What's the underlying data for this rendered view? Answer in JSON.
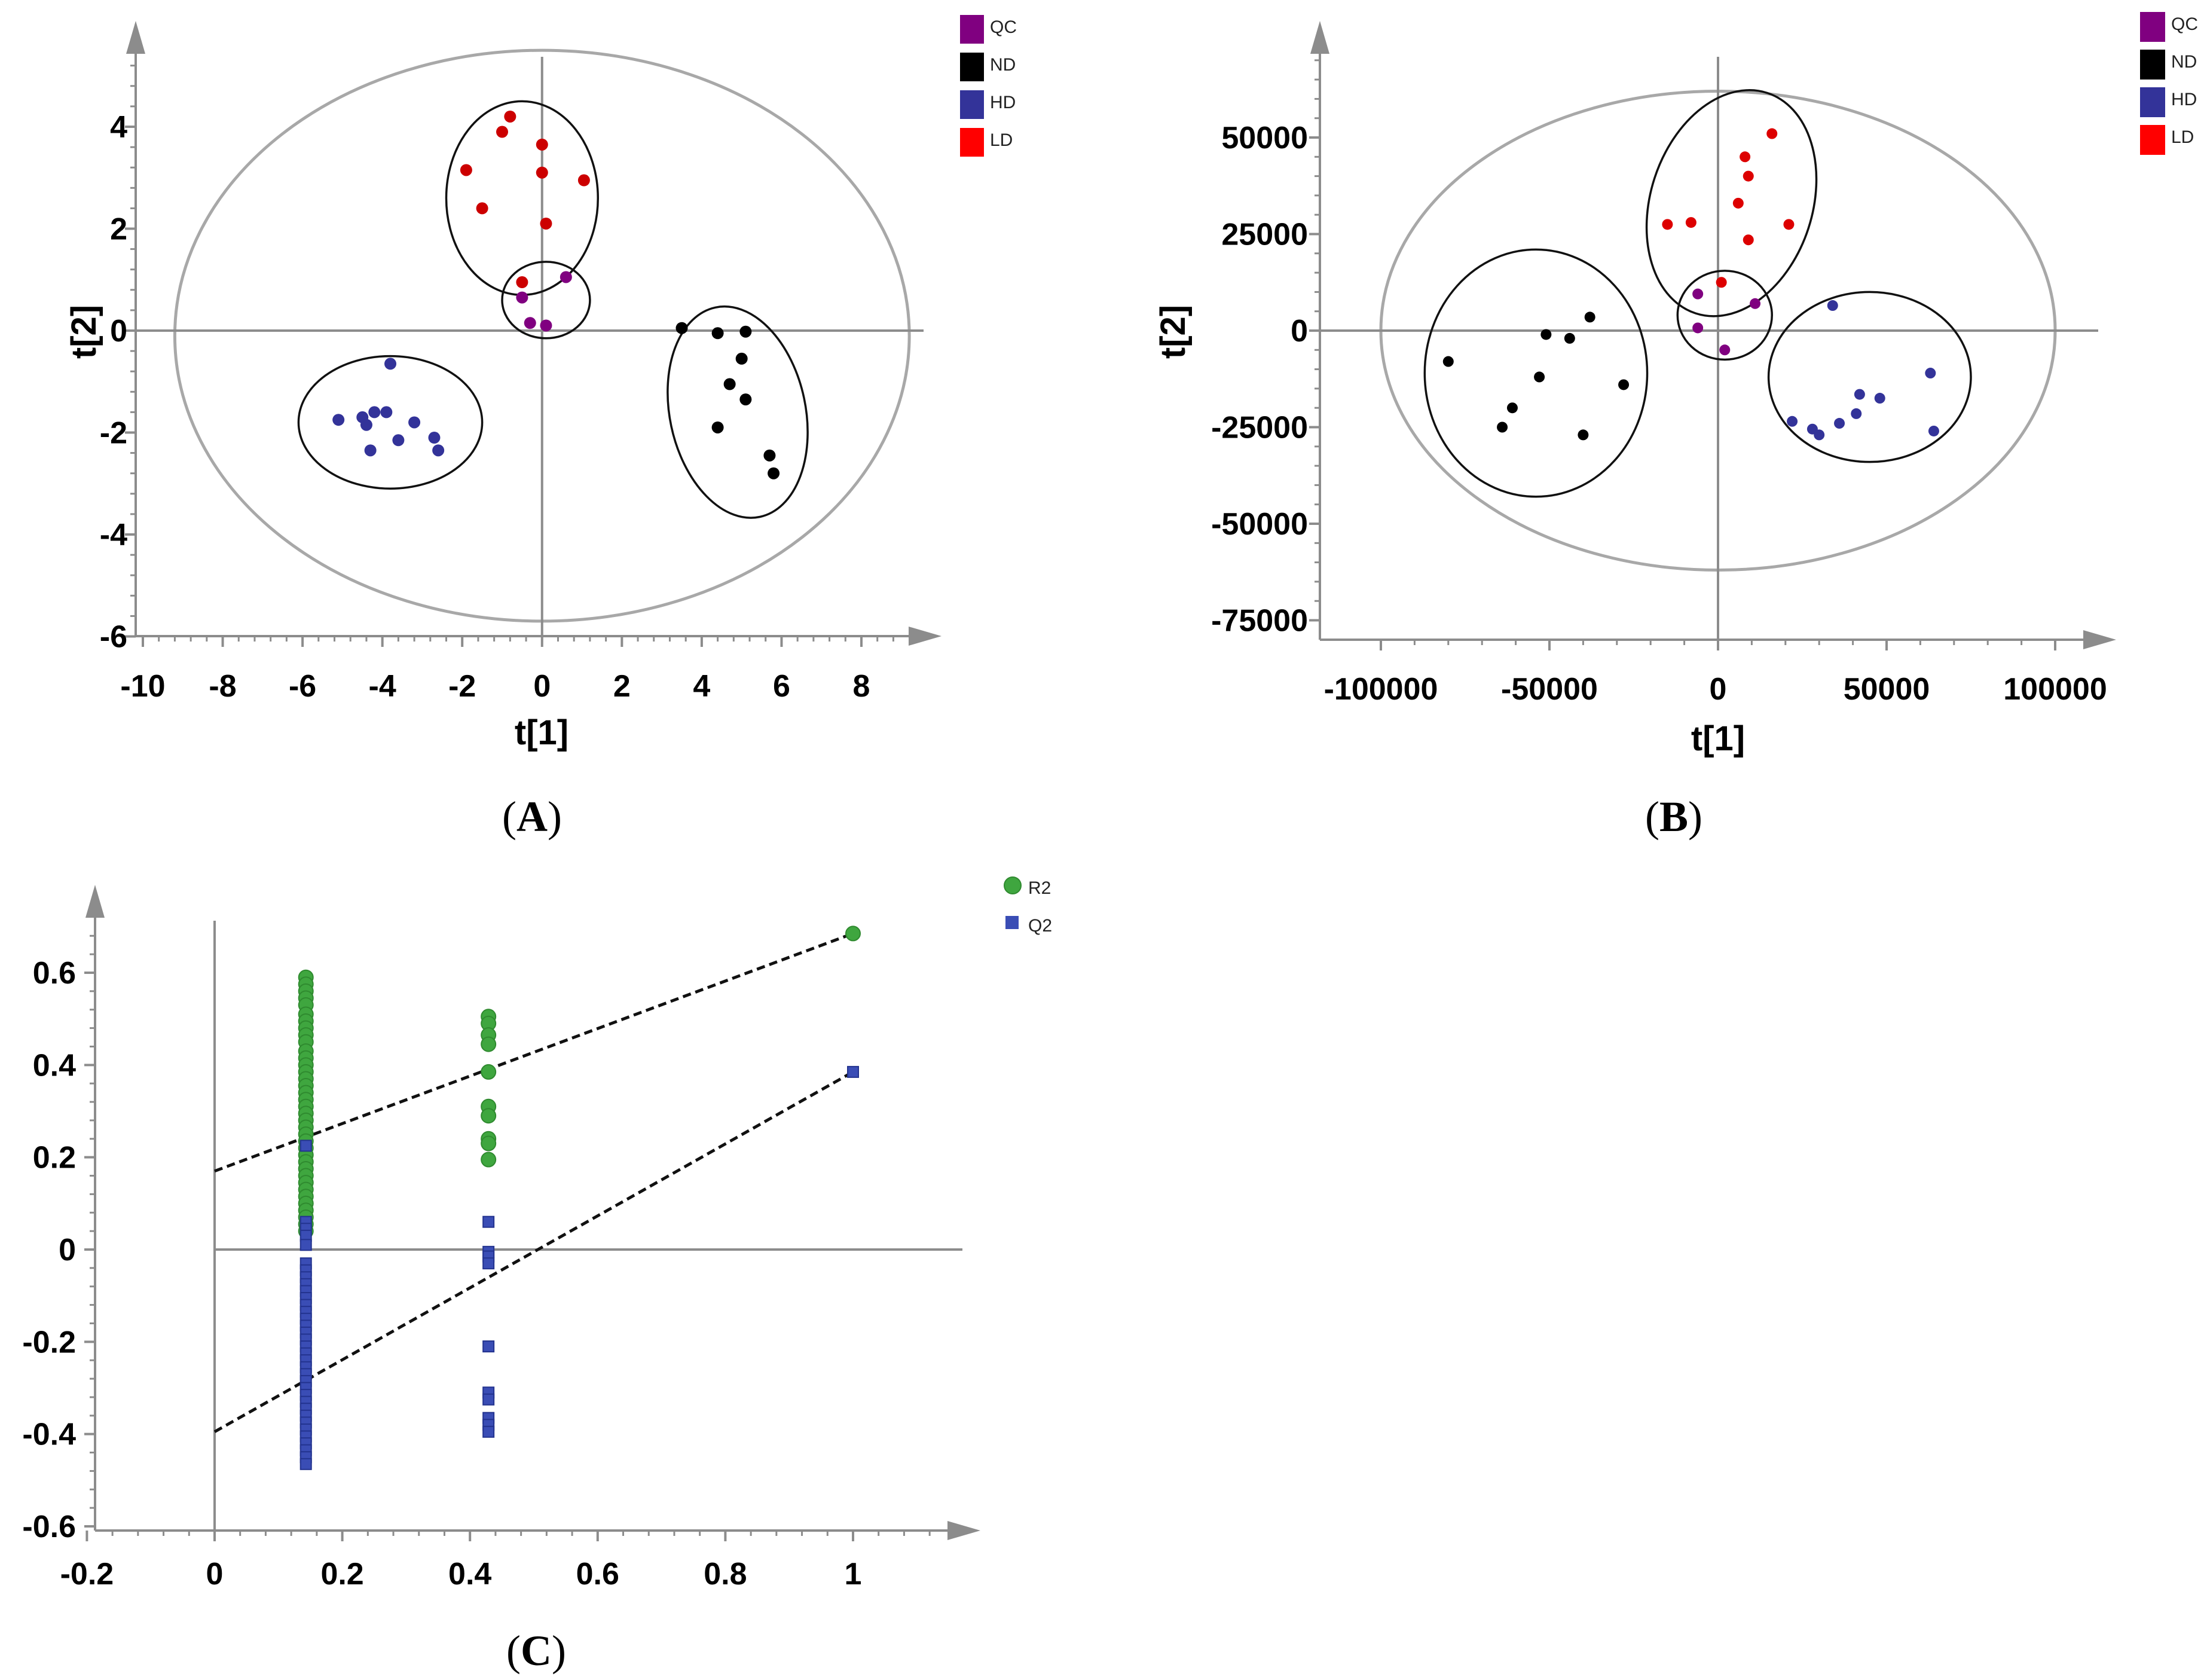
{
  "chart_data": [
    {
      "id": "A",
      "type": "scatter",
      "caption": "A",
      "xlabel": "t[1]",
      "ylabel": "t[2]",
      "xlim": [
        -10,
        9.5
      ],
      "ylim": [
        -6,
        5.2
      ],
      "xticks": [
        -10,
        -8,
        -6,
        -4,
        -2,
        0,
        2,
        4,
        6,
        8
      ],
      "yticks": [
        -6,
        -4,
        -2,
        0,
        2,
        4
      ],
      "legend": [
        {
          "name": "QC",
          "color": "#800080",
          "marker": "square"
        },
        {
          "name": "ND",
          "color": "#000000",
          "marker": "square"
        },
        {
          "name": "HD",
          "color": "#333399",
          "marker": "square"
        },
        {
          "name": "LD",
          "color": "#ff0000",
          "marker": "square"
        }
      ],
      "hotelling_ellipse": {
        "cx": 0,
        "cy": -0.1,
        "rx": 9.2,
        "ry": 5.6
      },
      "group_ellipses": [
        {
          "group": "LD",
          "cx": -0.5,
          "cy": 2.6,
          "rx": 1.9,
          "ry": 1.9
        },
        {
          "group": "QC",
          "cx": 0.1,
          "cy": 0.6,
          "rx": 1.1,
          "ry": 0.75
        },
        {
          "group": "HD",
          "cx": -3.8,
          "cy": -1.8,
          "rx": 2.3,
          "ry": 1.3
        },
        {
          "group": "ND",
          "cx": 4.9,
          "cy": -1.6,
          "rx": 1.7,
          "ry": 2.1,
          "rotate": -12
        }
      ],
      "series": [
        {
          "name": "LD",
          "color": "#cc0000",
          "points": [
            [
              -0.8,
              4.2
            ],
            [
              -1.0,
              3.9
            ],
            [
              0,
              3.65
            ],
            [
              -1.9,
              3.15
            ],
            [
              0,
              3.1
            ],
            [
              1.05,
              2.95
            ],
            [
              -1.5,
              2.4
            ],
            [
              0.1,
              2.1
            ],
            [
              -0.5,
              0.95
            ]
          ]
        },
        {
          "name": "QC",
          "color": "#800080",
          "points": [
            [
              0.6,
              1.05
            ],
            [
              -0.5,
              0.65
            ],
            [
              -0.3,
              0.15
            ],
            [
              0.1,
              0.1
            ]
          ]
        },
        {
          "name": "HD",
          "color": "#333399",
          "points": [
            [
              -3.8,
              -0.65
            ],
            [
              -4.2,
              -1.6
            ],
            [
              -3.9,
              -1.6
            ],
            [
              -4.5,
              -1.7
            ],
            [
              -5.1,
              -1.75
            ],
            [
              -4.4,
              -1.85
            ],
            [
              -3.2,
              -1.8
            ],
            [
              -2.7,
              -2.1
            ],
            [
              -3.6,
              -2.15
            ],
            [
              -2.6,
              -2.35
            ],
            [
              -4.3,
              -2.35
            ]
          ]
        },
        {
          "name": "ND",
          "color": "#000000",
          "points": [
            [
              3.5,
              0.05
            ],
            [
              4.4,
              -0.05
            ],
            [
              5.1,
              -0.02
            ],
            [
              5.0,
              -0.55
            ],
            [
              4.7,
              -1.05
            ],
            [
              5.1,
              -1.35
            ],
            [
              4.4,
              -1.9
            ],
            [
              5.7,
              -2.45
            ],
            [
              5.8,
              -2.8
            ]
          ]
        }
      ]
    },
    {
      "id": "B",
      "type": "scatter",
      "caption": "B",
      "xlabel": "t[1]",
      "ylabel": "t[2]",
      "xlim": [
        -120000,
        120000
      ],
      "ylim": [
        -80000,
        72000
      ],
      "xticks": [
        -100000,
        -50000,
        0,
        50000,
        100000
      ],
      "yticks": [
        -75000,
        -50000,
        -25000,
        0,
        25000,
        50000
      ],
      "legend": [
        {
          "name": "QC",
          "color": "#800080",
          "marker": "square"
        },
        {
          "name": "ND",
          "color": "#000000",
          "marker": "square"
        },
        {
          "name": "HD",
          "color": "#333399",
          "marker": "square"
        },
        {
          "name": "LD",
          "color": "#ff0000",
          "marker": "square"
        }
      ],
      "hotelling_ellipse": {
        "cx": 0,
        "cy": 0,
        "rx": 100000,
        "ry": 62000
      },
      "group_ellipses": [
        {
          "group": "LD",
          "cx": 4000,
          "cy": 33000,
          "rx": 24000,
          "ry": 30000,
          "rotate": 18
        },
        {
          "group": "QC",
          "cx": 2000,
          "cy": 4000,
          "rx": 14000,
          "ry": 11500
        },
        {
          "group": "ND",
          "cx": -54000,
          "cy": -11000,
          "rx": 33000,
          "ry": 32000
        },
        {
          "group": "HD",
          "cx": 45000,
          "cy": -12000,
          "rx": 30000,
          "ry": 22000
        }
      ],
      "series": [
        {
          "name": "LD",
          "color": "#dd0000",
          "points": [
            [
              16000,
              51000
            ],
            [
              8000,
              45000
            ],
            [
              9000,
              40000
            ],
            [
              6000,
              33000
            ],
            [
              -8000,
              28000
            ],
            [
              -15000,
              27500
            ],
            [
              21000,
              27500
            ],
            [
              9000,
              23500
            ],
            [
              1000,
              12500
            ]
          ]
        },
        {
          "name": "QC",
          "color": "#800080",
          "points": [
            [
              -6000,
              9500
            ],
            [
              11000,
              7000
            ],
            [
              -6000,
              700
            ],
            [
              2000,
              -5000
            ]
          ]
        },
        {
          "name": "ND",
          "color": "#000000",
          "points": [
            [
              -38000,
              3500
            ],
            [
              -51000,
              -1000
            ],
            [
              -44000,
              -2000
            ],
            [
              -80000,
              -8000
            ],
            [
              -53000,
              -12000
            ],
            [
              -28000,
              -14000
            ],
            [
              -61000,
              -20000
            ],
            [
              -64000,
              -25000
            ],
            [
              -40000,
              -27000
            ]
          ]
        },
        {
          "name": "HD",
          "color": "#333399",
          "points": [
            [
              34000,
              6500
            ],
            [
              63000,
              -11000
            ],
            [
              42000,
              -16500
            ],
            [
              48000,
              -17500
            ],
            [
              41000,
              -21500
            ],
            [
              22000,
              -23500
            ],
            [
              36000,
              -24000
            ],
            [
              28000,
              -25500
            ],
            [
              30000,
              -27000
            ],
            [
              64000,
              -26000
            ]
          ]
        }
      ]
    },
    {
      "id": "C",
      "type": "scatter",
      "caption": "C",
      "xlabel": "",
      "ylabel": "",
      "xlim": [
        -0.22,
        1.2
      ],
      "ylim": [
        -0.6,
        0.77
      ],
      "xticks": [
        -0.2,
        0,
        0.2,
        0.4,
        0.6,
        0.8,
        1
      ],
      "yticks": [
        -0.6,
        -0.4,
        -0.2,
        0,
        0.2,
        0.4,
        0.6
      ],
      "legend": [
        {
          "name": "R2",
          "color": "#3fa63f",
          "marker": "circle"
        },
        {
          "name": "Q2",
          "color": "#3a4db5",
          "marker": "square"
        }
      ],
      "regression_lines": [
        {
          "name": "R2",
          "x": [
            0,
            1
          ],
          "y": [
            0.17,
            0.685
          ]
        },
        {
          "name": "Q2",
          "x": [
            0,
            1
          ],
          "y": [
            -0.395,
            0.385
          ]
        }
      ],
      "series": [
        {
          "name": "R2",
          "color": "#3fa63f",
          "marker": "circle",
          "points": [
            [
              1,
              0.685
            ],
            [
              0.143,
              0.59
            ],
            [
              0.143,
              0.575
            ],
            [
              0.143,
              0.56
            ],
            [
              0.143,
              0.545
            ],
            [
              0.143,
              0.53
            ],
            [
              0.143,
              0.51
            ],
            [
              0.143,
              0.495
            ],
            [
              0.143,
              0.48
            ],
            [
              0.143,
              0.465
            ],
            [
              0.143,
              0.45
            ],
            [
              0.143,
              0.43
            ],
            [
              0.143,
              0.415
            ],
            [
              0.143,
              0.4
            ],
            [
              0.143,
              0.385
            ],
            [
              0.143,
              0.37
            ],
            [
              0.143,
              0.355
            ],
            [
              0.143,
              0.34
            ],
            [
              0.143,
              0.325
            ],
            [
              0.143,
              0.31
            ],
            [
              0.143,
              0.295
            ],
            [
              0.143,
              0.28
            ],
            [
              0.143,
              0.265
            ],
            [
              0.143,
              0.25
            ],
            [
              0.143,
              0.235
            ],
            [
              0.143,
              0.22
            ],
            [
              0.143,
              0.205
            ],
            [
              0.143,
              0.19
            ],
            [
              0.143,
              0.175
            ],
            [
              0.143,
              0.16
            ],
            [
              0.143,
              0.145
            ],
            [
              0.143,
              0.13
            ],
            [
              0.143,
              0.115
            ],
            [
              0.143,
              0.1
            ],
            [
              0.143,
              0.085
            ],
            [
              0.143,
              0.07
            ],
            [
              0.143,
              0.055
            ],
            [
              0.143,
              0.04
            ],
            [
              0.429,
              0.505
            ],
            [
              0.429,
              0.49
            ],
            [
              0.429,
              0.465
            ],
            [
              0.429,
              0.445
            ],
            [
              0.429,
              0.385
            ],
            [
              0.429,
              0.31
            ],
            [
              0.429,
              0.29
            ],
            [
              0.429,
              0.24
            ],
            [
              0.429,
              0.23
            ],
            [
              0.429,
              0.195
            ]
          ]
        },
        {
          "name": "Q2",
          "color": "#3a4db5",
          "marker": "square",
          "points": [
            [
              1,
              0.385
            ],
            [
              0.143,
              0.225
            ],
            [
              0.143,
              0.06
            ],
            [
              0.143,
              0.045
            ],
            [
              0.143,
              0.03
            ],
            [
              0.143,
              0.01
            ],
            [
              0.143,
              -0.03
            ],
            [
              0.143,
              -0.045
            ],
            [
              0.143,
              -0.06
            ],
            [
              0.143,
              -0.075
            ],
            [
              0.143,
              -0.09
            ],
            [
              0.143,
              -0.105
            ],
            [
              0.143,
              -0.12
            ],
            [
              0.143,
              -0.135
            ],
            [
              0.143,
              -0.15
            ],
            [
              0.143,
              -0.165
            ],
            [
              0.143,
              -0.18
            ],
            [
              0.143,
              -0.195
            ],
            [
              0.143,
              -0.21
            ],
            [
              0.143,
              -0.225
            ],
            [
              0.143,
              -0.24
            ],
            [
              0.143,
              -0.255
            ],
            [
              0.143,
              -0.27
            ],
            [
              0.143,
              -0.285
            ],
            [
              0.143,
              -0.3
            ],
            [
              0.143,
              -0.315
            ],
            [
              0.143,
              -0.33
            ],
            [
              0.143,
              -0.345
            ],
            [
              0.143,
              -0.36
            ],
            [
              0.143,
              -0.375
            ],
            [
              0.143,
              -0.39
            ],
            [
              0.143,
              -0.405
            ],
            [
              0.143,
              -0.42
            ],
            [
              0.143,
              -0.435
            ],
            [
              0.143,
              -0.45
            ],
            [
              0.143,
              -0.465
            ],
            [
              0.429,
              0.06
            ],
            [
              0.429,
              -0.005
            ],
            [
              0.429,
              -0.015
            ],
            [
              0.429,
              -0.03
            ],
            [
              0.429,
              -0.21
            ],
            [
              0.429,
              -0.31
            ],
            [
              0.429,
              -0.325
            ],
            [
              0.429,
              -0.365
            ],
            [
              0.429,
              -0.38
            ],
            [
              0.429,
              -0.395
            ]
          ]
        }
      ]
    }
  ]
}
